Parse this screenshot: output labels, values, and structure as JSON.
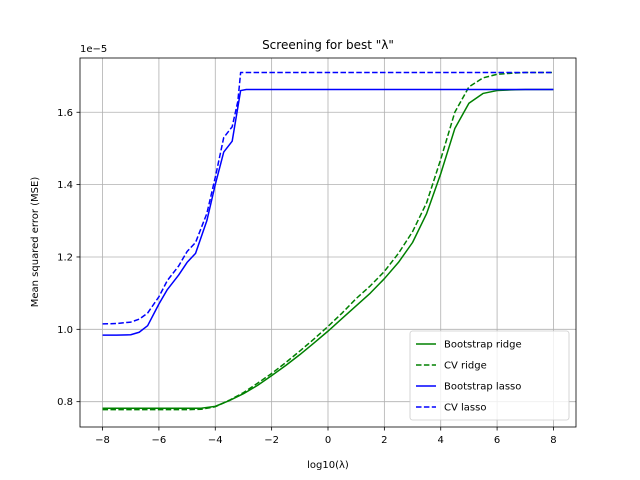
{
  "chart_data": {
    "type": "line",
    "title": "Screening for best \"λ\"",
    "xlabel": "log10(λ)",
    "ylabel": "Mean squared error (MSE)",
    "offset_text": "1e−5",
    "xlim": [
      -8.8,
      8.8
    ],
    "ylim": [
      0.73,
      1.75
    ],
    "xticks": [
      -8,
      -6,
      -4,
      -2,
      0,
      2,
      4,
      6,
      8
    ],
    "xtick_labels": [
      "−8",
      "−6",
      "−4",
      "−2",
      "0",
      "2",
      "4",
      "6",
      "8"
    ],
    "yticks": [
      0.8,
      1.0,
      1.2,
      1.4,
      1.6
    ],
    "ytick_labels": [
      "0.8",
      "1.0",
      "1.2",
      "1.4",
      "1.6"
    ],
    "grid": true,
    "legend_position": "lower-right",
    "series": [
      {
        "name": "Bootstrap ridge",
        "color": "#008000",
        "dash": "solid",
        "x": [
          -8,
          -7,
          -6,
          -5,
          -4.5,
          -4,
          -3.5,
          -3,
          -2.5,
          -2,
          -1.5,
          -1,
          -0.5,
          0,
          0.5,
          1,
          1.5,
          2,
          2.5,
          3,
          3.5,
          4,
          4.5,
          5,
          5.5,
          6,
          6.5,
          7,
          7.5,
          8
        ],
        "y": [
          0.782,
          0.782,
          0.782,
          0.782,
          0.782,
          0.787,
          0.803,
          0.822,
          0.845,
          0.872,
          0.9,
          0.93,
          0.962,
          0.995,
          1.03,
          1.065,
          1.1,
          1.14,
          1.185,
          1.24,
          1.32,
          1.43,
          1.555,
          1.625,
          1.652,
          1.66,
          1.662,
          1.663,
          1.663,
          1.663
        ]
      },
      {
        "name": "CV ridge",
        "color": "#008000",
        "dash": "dashed",
        "x": [
          -8,
          -7,
          -6,
          -5,
          -4.5,
          -4,
          -3.5,
          -3,
          -2.5,
          -2,
          -1.5,
          -1,
          -0.5,
          0,
          0.5,
          1,
          1.5,
          2,
          2.5,
          3,
          3.5,
          4,
          4.5,
          5,
          5.5,
          6,
          6.5,
          7,
          7.5,
          8
        ],
        "y": [
          0.778,
          0.778,
          0.778,
          0.778,
          0.779,
          0.786,
          0.804,
          0.825,
          0.851,
          0.878,
          0.908,
          0.94,
          0.973,
          1.008,
          1.045,
          1.085,
          1.12,
          1.16,
          1.21,
          1.27,
          1.35,
          1.47,
          1.6,
          1.67,
          1.695,
          1.705,
          1.708,
          1.71,
          1.71,
          1.71
        ]
      },
      {
        "name": "Bootstrap lasso",
        "color": "#0000ff",
        "dash": "solid",
        "x": [
          -8,
          -7.5,
          -7,
          -6.7,
          -6.4,
          -6,
          -5.7,
          -5.3,
          -5,
          -4.7,
          -4.3,
          -4,
          -3.7,
          -3.4,
          -3.1,
          -2.9,
          -2.5,
          -2,
          0,
          8
        ],
        "y": [
          0.984,
          0.984,
          0.985,
          0.992,
          1.01,
          1.07,
          1.11,
          1.15,
          1.185,
          1.21,
          1.3,
          1.4,
          1.49,
          1.52,
          1.66,
          1.663,
          1.663,
          1.663,
          1.663,
          1.663
        ]
      },
      {
        "name": "CV lasso",
        "color": "#0000ff",
        "dash": "dashed",
        "x": [
          -8,
          -7.5,
          -7,
          -6.7,
          -6.4,
          -6,
          -5.7,
          -5.3,
          -5,
          -4.7,
          -4.3,
          -4,
          -3.7,
          -3.4,
          -3.2,
          -3.1,
          -2.5,
          0,
          8
        ],
        "y": [
          1.015,
          1.016,
          1.02,
          1.028,
          1.045,
          1.09,
          1.135,
          1.175,
          1.215,
          1.24,
          1.32,
          1.42,
          1.53,
          1.56,
          1.63,
          1.71,
          1.71,
          1.71,
          1.71
        ]
      }
    ]
  }
}
